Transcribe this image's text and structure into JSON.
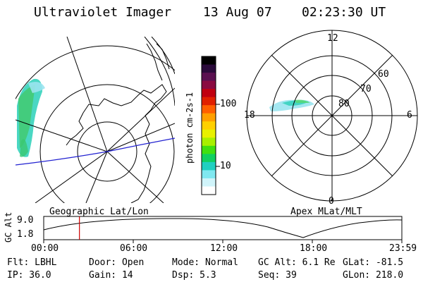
{
  "header": {
    "title": "Ultraviolet Imager",
    "date": "13 Aug 07",
    "time": "02:23:30 UT"
  },
  "colorbar": {
    "unit_label": "photon cm-2s-1",
    "ticks": [
      "100",
      "10"
    ],
    "colors": [
      "#000000",
      "#2a0a3a",
      "#5a1050",
      "#8a0a40",
      "#c00010",
      "#e02000",
      "#ff6000",
      "#ffa000",
      "#ffd000",
      "#e8f000",
      "#a8f000",
      "#40e010",
      "#10d060",
      "#20d0c0",
      "#80e8f0",
      "#d0f4fa",
      "#ffffff"
    ]
  },
  "geo_map": {
    "label": "Geographic Lat/Lon"
  },
  "polar_plot": {
    "label": "Apex MLat/MLT",
    "mlt_labels": [
      "12",
      "18",
      "6",
      "0"
    ],
    "lat_labels": [
      "60",
      "70",
      "80"
    ]
  },
  "timeline": {
    "ylabel": "GC Alt",
    "yticks": [
      "9.0",
      "1.8"
    ],
    "xticks": [
      "00:00",
      "06:00",
      "12:00",
      "18:00",
      "23:59"
    ],
    "marker_time": "02:23:30",
    "line_color": "#cc0000"
  },
  "info": {
    "filter": "Flt: LBHL",
    "door": "Door: Open",
    "mode": "Mode: Normal",
    "gc_alt": "GC Alt: 6.1 Re",
    "glat": "GLat: -81.5",
    "ip": "IP: 36.0",
    "gain": "Gain: 14",
    "dsp": "Dsp:    5.3",
    "seq": "Seq: 39",
    "glon": "GLon: 218.0"
  }
}
